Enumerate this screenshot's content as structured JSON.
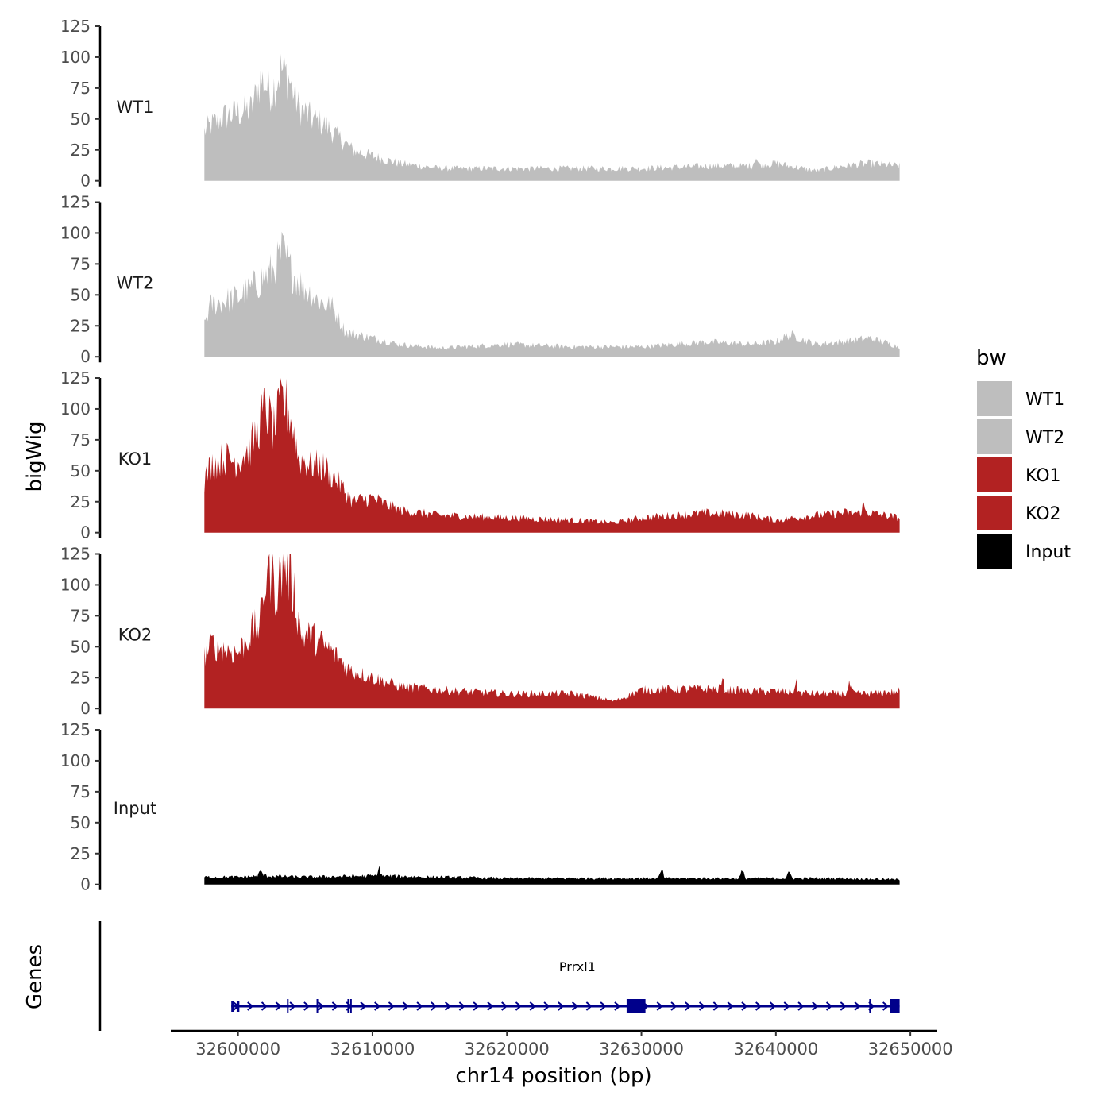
{
  "chart_data": {
    "type": "area",
    "chromosome": "chr14",
    "xlabel": "chr14 position (bp)",
    "ylabel": "bigWig",
    "gene_panel_label": "Genes",
    "xlim": [
      32595000,
      32652000
    ],
    "x_ticks": [
      32600000,
      32610000,
      32620000,
      32630000,
      32640000,
      32650000
    ],
    "x_tick_labels": [
      "32600000",
      "32610000",
      "32620000",
      "32630000",
      "32640000",
      "32650000"
    ],
    "ylim": [
      0,
      125
    ],
    "y_ticks": [
      0,
      25,
      50,
      75,
      100,
      125
    ],
    "y_tick_labels": [
      "0",
      "25",
      "50",
      "75",
      "100",
      "125"
    ],
    "signal_start": 32597500,
    "signal_end": 32649200,
    "legend": {
      "title": "bw",
      "position": "right",
      "entries": [
        {
          "label": "WT1",
          "color": "#BEBEBE"
        },
        {
          "label": "WT2",
          "color": "#BEBEBE"
        },
        {
          "label": "KO1",
          "color": "#B22222"
        },
        {
          "label": "KO2",
          "color": "#B22222"
        },
        {
          "label": "Input",
          "color": "#000000"
        }
      ]
    },
    "series": [
      {
        "name": "WT1",
        "color": "#BEBEBE",
        "profile": [
          {
            "x": 32597500,
            "y": 40
          },
          {
            "x": 32598000,
            "y": 45
          },
          {
            "x": 32599000,
            "y": 52
          },
          {
            "x": 32600000,
            "y": 55
          },
          {
            "x": 32601000,
            "y": 58
          },
          {
            "x": 32601700,
            "y": 82
          },
          {
            "x": 32602500,
            "y": 72
          },
          {
            "x": 32603200,
            "y": 90
          },
          {
            "x": 32603700,
            "y": 85
          },
          {
            "x": 32604500,
            "y": 60
          },
          {
            "x": 32605500,
            "y": 50
          },
          {
            "x": 32606500,
            "y": 45
          },
          {
            "x": 32607500,
            "y": 35
          },
          {
            "x": 32608500,
            "y": 25
          },
          {
            "x": 32610000,
            "y": 20
          },
          {
            "x": 32612000,
            "y": 14
          },
          {
            "x": 32615000,
            "y": 10
          },
          {
            "x": 32620000,
            "y": 10
          },
          {
            "x": 32625000,
            "y": 10
          },
          {
            "x": 32630000,
            "y": 10
          },
          {
            "x": 32635000,
            "y": 12
          },
          {
            "x": 32638000,
            "y": 12
          },
          {
            "x": 32640000,
            "y": 14
          },
          {
            "x": 32643000,
            "y": 8
          },
          {
            "x": 32645000,
            "y": 12
          },
          {
            "x": 32647000,
            "y": 14
          },
          {
            "x": 32649200,
            "y": 12
          }
        ],
        "peaks": [
          {
            "x": 32638500,
            "y": 20
          },
          {
            "x": 32626500,
            "y": 5
          }
        ]
      },
      {
        "name": "WT2",
        "color": "#BEBEBE",
        "profile": [
          {
            "x": 32597500,
            "y": 28
          },
          {
            "x": 32598000,
            "y": 42
          },
          {
            "x": 32599000,
            "y": 45
          },
          {
            "x": 32600000,
            "y": 48
          },
          {
            "x": 32601000,
            "y": 55
          },
          {
            "x": 32602000,
            "y": 65
          },
          {
            "x": 32602700,
            "y": 70
          },
          {
            "x": 32603300,
            "y": 85
          },
          {
            "x": 32603900,
            "y": 70
          },
          {
            "x": 32605000,
            "y": 55
          },
          {
            "x": 32606000,
            "y": 45
          },
          {
            "x": 32607000,
            "y": 40
          },
          {
            "x": 32608000,
            "y": 20
          },
          {
            "x": 32610000,
            "y": 15
          },
          {
            "x": 32612000,
            "y": 10
          },
          {
            "x": 32615000,
            "y": 7
          },
          {
            "x": 32620000,
            "y": 10
          },
          {
            "x": 32625000,
            "y": 8
          },
          {
            "x": 32630000,
            "y": 8
          },
          {
            "x": 32635000,
            "y": 12
          },
          {
            "x": 32638000,
            "y": 10
          },
          {
            "x": 32640000,
            "y": 12
          },
          {
            "x": 32641000,
            "y": 18
          },
          {
            "x": 32643000,
            "y": 10
          },
          {
            "x": 32645000,
            "y": 12
          },
          {
            "x": 32647000,
            "y": 15
          },
          {
            "x": 32649200,
            "y": 8
          }
        ],
        "peaks": []
      },
      {
        "name": "KO1",
        "color": "#B22222",
        "profile": [
          {
            "x": 32597500,
            "y": 42
          },
          {
            "x": 32598000,
            "y": 55
          },
          {
            "x": 32599000,
            "y": 60
          },
          {
            "x": 32600000,
            "y": 58
          },
          {
            "x": 32601000,
            "y": 70
          },
          {
            "x": 32602000,
            "y": 100
          },
          {
            "x": 32602700,
            "y": 82
          },
          {
            "x": 32603300,
            "y": 108
          },
          {
            "x": 32603900,
            "y": 95
          },
          {
            "x": 32604500,
            "y": 60
          },
          {
            "x": 32605500,
            "y": 55
          },
          {
            "x": 32606500,
            "y": 52
          },
          {
            "x": 32607500,
            "y": 40
          },
          {
            "x": 32608500,
            "y": 25
          },
          {
            "x": 32610000,
            "y": 28
          },
          {
            "x": 32612000,
            "y": 18
          },
          {
            "x": 32615000,
            "y": 14
          },
          {
            "x": 32620000,
            "y": 12
          },
          {
            "x": 32625000,
            "y": 10
          },
          {
            "x": 32628000,
            "y": 8
          },
          {
            "x": 32630000,
            "y": 12
          },
          {
            "x": 32635000,
            "y": 16
          },
          {
            "x": 32638000,
            "y": 14
          },
          {
            "x": 32640000,
            "y": 10
          },
          {
            "x": 32643000,
            "y": 14
          },
          {
            "x": 32645000,
            "y": 16
          },
          {
            "x": 32647000,
            "y": 16
          },
          {
            "x": 32649200,
            "y": 12
          }
        ],
        "peaks": [
          {
            "x": 32646500,
            "y": 22
          }
        ]
      },
      {
        "name": "KO2",
        "color": "#B22222",
        "profile": [
          {
            "x": 32597500,
            "y": 42
          },
          {
            "x": 32598000,
            "y": 52
          },
          {
            "x": 32599000,
            "y": 48
          },
          {
            "x": 32600000,
            "y": 45
          },
          {
            "x": 32601000,
            "y": 62
          },
          {
            "x": 32601700,
            "y": 70
          },
          {
            "x": 32602200,
            "y": 120
          },
          {
            "x": 32602800,
            "y": 95
          },
          {
            "x": 32603500,
            "y": 118
          },
          {
            "x": 32604100,
            "y": 98
          },
          {
            "x": 32604700,
            "y": 60
          },
          {
            "x": 32605500,
            "y": 58
          },
          {
            "x": 32606500,
            "y": 50
          },
          {
            "x": 32607500,
            "y": 40
          },
          {
            "x": 32608500,
            "y": 30
          },
          {
            "x": 32610000,
            "y": 25
          },
          {
            "x": 32612000,
            "y": 18
          },
          {
            "x": 32615000,
            "y": 15
          },
          {
            "x": 32620000,
            "y": 12
          },
          {
            "x": 32625000,
            "y": 12
          },
          {
            "x": 32628000,
            "y": 6
          },
          {
            "x": 32630000,
            "y": 15
          },
          {
            "x": 32635000,
            "y": 16
          },
          {
            "x": 32638000,
            "y": 14
          },
          {
            "x": 32640000,
            "y": 14
          },
          {
            "x": 32643000,
            "y": 12
          },
          {
            "x": 32645000,
            "y": 12
          },
          {
            "x": 32647000,
            "y": 12
          },
          {
            "x": 32649200,
            "y": 14
          }
        ],
        "peaks": [
          {
            "x": 32636000,
            "y": 22
          },
          {
            "x": 32641500,
            "y": 20
          },
          {
            "x": 32645500,
            "y": 20
          }
        ]
      },
      {
        "name": "Input",
        "color": "#000000",
        "profile": [
          {
            "x": 32597500,
            "y": 6
          },
          {
            "x": 32600000,
            "y": 6
          },
          {
            "x": 32602000,
            "y": 7
          },
          {
            "x": 32605000,
            "y": 6
          },
          {
            "x": 32610000,
            "y": 7
          },
          {
            "x": 32615000,
            "y": 6
          },
          {
            "x": 32620000,
            "y": 5
          },
          {
            "x": 32625000,
            "y": 5
          },
          {
            "x": 32630000,
            "y": 5
          },
          {
            "x": 32635000,
            "y": 5
          },
          {
            "x": 32640000,
            "y": 5
          },
          {
            "x": 32645000,
            "y": 5
          },
          {
            "x": 32649200,
            "y": 4
          }
        ],
        "peaks": [
          {
            "x": 32601700,
            "y": 11
          },
          {
            "x": 32610500,
            "y": 13
          },
          {
            "x": 32631500,
            "y": 12
          },
          {
            "x": 32637500,
            "y": 11
          },
          {
            "x": 32641000,
            "y": 10
          }
        ]
      }
    ],
    "genes": [
      {
        "name": "Prrxl1",
        "strand": "+",
        "start": 32599500,
        "end": 32649200,
        "color": "#00008B",
        "exons": [
          {
            "start": 32599500,
            "end": 32599700,
            "type": "utr"
          },
          {
            "start": 32599900,
            "end": 32600100,
            "type": "utr"
          },
          {
            "start": 32628900,
            "end": 32630300,
            "type": "cds"
          },
          {
            "start": 32648500,
            "end": 32649200,
            "type": "cds"
          }
        ],
        "splice_marks": [
          32603700,
          32605900,
          32608200,
          32608400,
          32647000
        ]
      }
    ]
  }
}
